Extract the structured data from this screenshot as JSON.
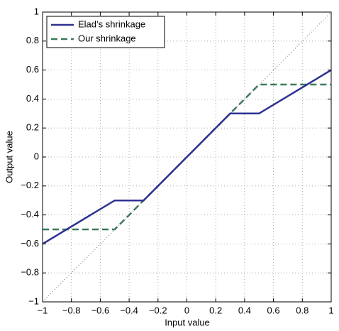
{
  "chart_data": {
    "type": "line",
    "xlabel": "Input value",
    "ylabel": "Output value",
    "xlim": [
      -1,
      1
    ],
    "ylim": [
      -1,
      1
    ],
    "xticks": [
      {
        "value": -1,
        "label": "−1"
      },
      {
        "value": -0.8,
        "label": "−0.8"
      },
      {
        "value": -0.6,
        "label": "−0.6"
      },
      {
        "value": -0.4,
        "label": "−0.4"
      },
      {
        "value": -0.2,
        "label": "−0.2"
      },
      0,
      0.2,
      0.4,
      0.6,
      0.8,
      1
    ],
    "yticks": [
      {
        "value": -1,
        "label": "−1"
      },
      {
        "value": -0.8,
        "label": "−0.8"
      },
      {
        "value": -0.6,
        "label": "−0.6"
      },
      {
        "value": -0.4,
        "label": "−0.4"
      },
      {
        "value": -0.2,
        "label": "−0.2"
      },
      0,
      0.2,
      0.4,
      0.6,
      0.8,
      1
    ],
    "grid": true,
    "legend": "upper left",
    "series": [
      {
        "name": "Elad’s shrinkage",
        "color": "#2e3192",
        "style": "solid",
        "x": [
          -1,
          -0.5,
          -0.3,
          0.3,
          0.5,
          1
        ],
        "values": [
          -0.6,
          -0.3,
          -0.3,
          0.3,
          0.3,
          0.6
        ]
      },
      {
        "name": "Our shrinkage",
        "color": "#3b7a5a",
        "style": "dashed",
        "x": [
          -1,
          -0.5,
          0.5,
          1
        ],
        "values": [
          -0.5,
          -0.5,
          0.5,
          0.5
        ]
      },
      {
        "color": "#555555",
        "style": "dotted",
        "x": [
          -1,
          1
        ],
        "values": [
          -1,
          1
        ]
      }
    ]
  }
}
